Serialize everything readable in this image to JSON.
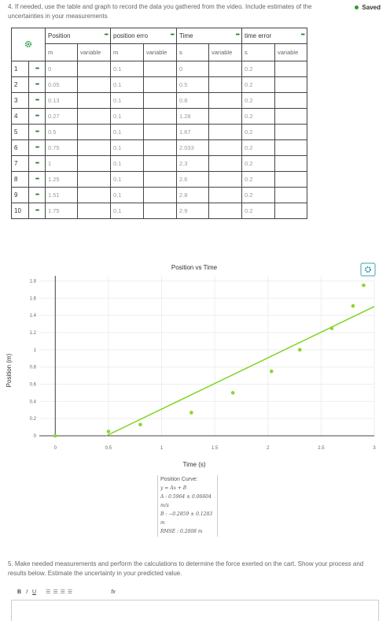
{
  "question4": {
    "text": "4. If needed, use the table and graph to record the data you gathered from the video. Include estimates of the uncertainties in your measurements",
    "status": "Saved"
  },
  "table": {
    "columns": [
      {
        "name": "Position",
        "unit": "m",
        "kind": "variable"
      },
      {
        "name": "position erro",
        "unit": "m",
        "kind": "variable"
      },
      {
        "name": "Time",
        "unit": "s",
        "kind": "variable"
      },
      {
        "name": "time error",
        "unit": "s",
        "kind": "variable"
      }
    ],
    "row_numbers": [
      "1",
      "2",
      "3",
      "4",
      "5",
      "6",
      "7",
      "8",
      "9",
      "10"
    ],
    "rows": [
      [
        "0",
        "0.1",
        "0",
        "0.2"
      ],
      [
        "0.05",
        "0.1",
        "0.5",
        "0.2"
      ],
      [
        "0.13",
        "0.1",
        "0.8",
        "0.2"
      ],
      [
        "0.27",
        "0.1",
        "1.28",
        "0.2"
      ],
      [
        "0.5",
        "0.1",
        "1.67",
        "0.2"
      ],
      [
        "0.75",
        "0.1",
        "2.033",
        "0.2"
      ],
      [
        "1",
        "0.1",
        "2.3",
        "0.2"
      ],
      [
        "1.25",
        "0.1",
        "2.6",
        "0.2"
      ],
      [
        "1.51",
        "0.1",
        "2.8",
        "0.2"
      ],
      [
        "1.75",
        "0.1",
        "2.9",
        "0.2"
      ]
    ]
  },
  "chart": {
    "type": "scatter",
    "title": "Position vs Time",
    "x_label": "Time (s)",
    "y_label": "Position (m)",
    "x": [
      0,
      0.5,
      0.8,
      1.28,
      1.67,
      2.033,
      2.3,
      2.6,
      2.8,
      2.9
    ],
    "series": [
      {
        "name": "Position",
        "color": "#8ed42e",
        "values": [
          0,
          0.05,
          0.13,
          0.27,
          0.5,
          0.75,
          1,
          1.25,
          1.51,
          1.75
        ]
      }
    ],
    "xlim": [
      -0.15,
      3
    ],
    "xticks": [
      0,
      0.5,
      1,
      1.5,
      2,
      2.5,
      3
    ],
    "ylim": [
      0,
      1.86
    ],
    "yticks": [
      0,
      0.2,
      0.4,
      0.6,
      0.8,
      1,
      1.2,
      1.4,
      1.6,
      1.8
    ],
    "grid": true,
    "fit": {
      "color": "#7ed321",
      "slope": 0.5964,
      "intercept": -0.2859,
      "box": [
        "Position Curve:",
        "y = Ax + B",
        "A : 0.5964 ± 0.06604 m/s",
        "B : −0.2859 ± 0.1283 m",
        "RMSE : 0.2008 m"
      ]
    }
  },
  "question5": {
    "text": "5. Make needed measurements and perform the calculations to determine the force exerted on the cart. Show your process and results below. Estimate the uncertainty in your predicted value."
  },
  "toolbar": [
    "B",
    "I",
    "U",
    "fx"
  ]
}
